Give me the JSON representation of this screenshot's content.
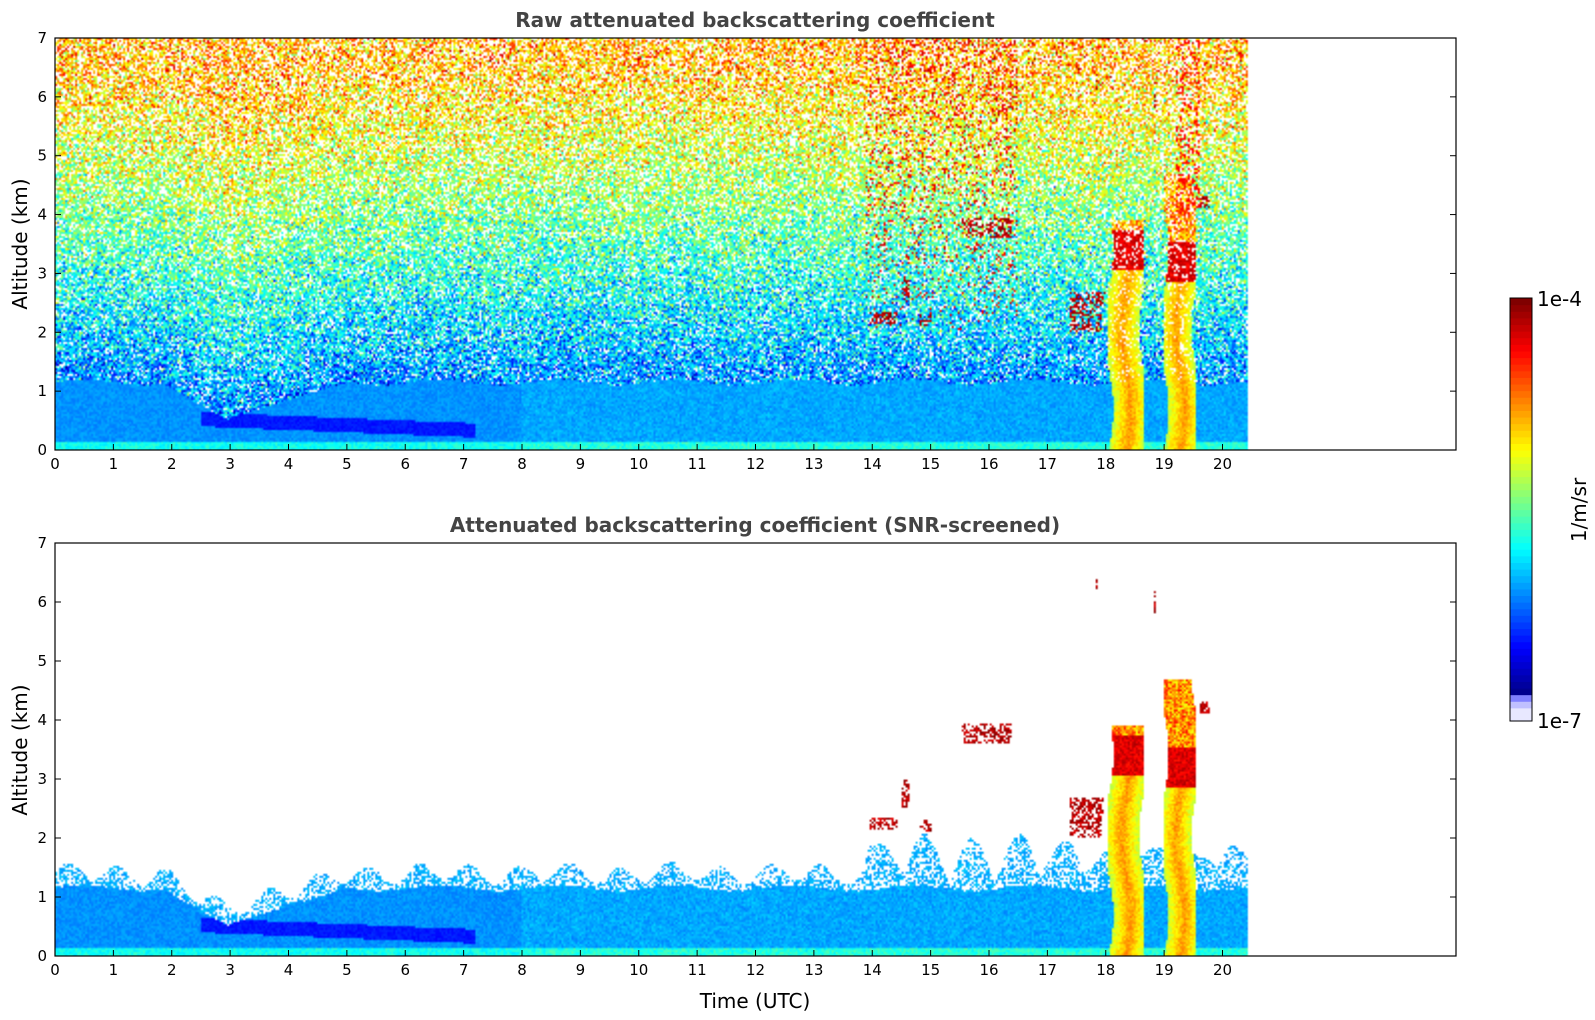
{
  "colors": {
    "jet": [
      "#000080",
      "#0000ff",
      "#0080ff",
      "#00ffff",
      "#80ff80",
      "#ffff00",
      "#ff8000",
      "#ff0000",
      "#800000"
    ],
    "low_end": [
      "#e8e8ff",
      "#c0c0ff",
      "#8080ff"
    ],
    "title": "#444444"
  },
  "chart_data": [
    {
      "type": "heatmap",
      "title": "Raw attenuated backscattering coefficient",
      "xlabel": "",
      "ylabel": "Altitude (km)",
      "xlim": [
        0,
        24
      ],
      "ylim": [
        0,
        7
      ],
      "xticks": [
        "0",
        "1",
        "2",
        "3",
        "4",
        "5",
        "6",
        "7",
        "8",
        "9",
        "10",
        "11",
        "12",
        "13",
        "14",
        "15",
        "16",
        "17",
        "18",
        "19",
        "20"
      ],
      "yticks": [
        "0",
        "1",
        "2",
        "3",
        "4",
        "5",
        "6",
        "7"
      ],
      "data_end_time": 20.45,
      "screened": false,
      "grid": false
    },
    {
      "type": "heatmap",
      "title": "Attenuated backscattering coefficient (SNR-screened)",
      "xlabel": "Time (UTC)",
      "ylabel": "Altitude (km)",
      "xlim": [
        0,
        24
      ],
      "ylim": [
        0,
        7
      ],
      "xticks": [
        "0",
        "1",
        "2",
        "3",
        "4",
        "5",
        "6",
        "7",
        "8",
        "9",
        "10",
        "11",
        "12",
        "13",
        "14",
        "15",
        "16",
        "17",
        "18",
        "19",
        "20"
      ],
      "yticks": [
        "0",
        "1",
        "2",
        "3",
        "4",
        "5",
        "6",
        "7"
      ],
      "data_end_time": 20.45,
      "screened": true,
      "grid": false
    }
  ],
  "colorbar": {
    "label": "1/m/sr",
    "max_label": "1e-4",
    "min_label": "1e-7",
    "vmin_exp": -7,
    "vmax_exp": -4,
    "scale": "log"
  },
  "features": {
    "clouds": [
      {
        "t0": 18.05,
        "t1": 18.65,
        "base": 0,
        "top": 3.9,
        "peak": 3.4
      },
      {
        "t0": 19.0,
        "t1": 19.55,
        "base": 0,
        "top": 4.7,
        "peak": 3.2
      },
      {
        "t0": 14.5,
        "t1": 14.65,
        "base": 2.5,
        "top": 3.0,
        "peak": 2.7
      },
      {
        "t0": 15.5,
        "t1": 16.4,
        "base": 3.6,
        "top": 3.95,
        "peak": 3.8
      },
      {
        "t0": 17.4,
        "t1": 18.0,
        "base": 2.0,
        "top": 2.7,
        "peak": 2.4
      },
      {
        "t0": 13.95,
        "t1": 14.5,
        "base": 2.15,
        "top": 2.35,
        "peak": 2.25
      },
      {
        "t0": 14.8,
        "t1": 15.1,
        "base": 2.1,
        "top": 2.3,
        "peak": 2.2
      },
      {
        "t0": 18.75,
        "t1": 18.85,
        "base": 5.8,
        "top": 6.2,
        "peak": 6.0
      },
      {
        "t0": 19.6,
        "t1": 19.8,
        "base": 4.1,
        "top": 4.3,
        "peak": 4.2
      },
      {
        "t0": 17.75,
        "t1": 17.85,
        "base": 6.1,
        "top": 6.4,
        "peak": 6.3
      }
    ]
  }
}
